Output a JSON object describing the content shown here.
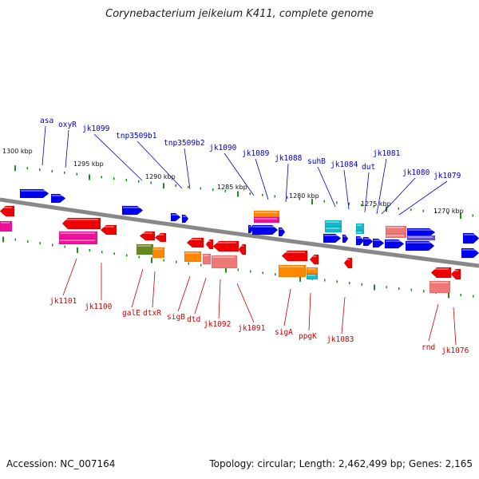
{
  "title": "Corynebacterium jeikeium K411, complete genome",
  "accession": "Accession: NC_007164",
  "summary": "Topology: circular; Length: 2,462,499 bp; Genes: 2,165",
  "scale_labels": [
    "1300 kbp",
    "1295 kbp",
    "1290 kbp",
    "1285 kbp",
    "1280 kbp",
    "1275 kbp",
    "1270 kbp"
  ],
  "top_labels": [
    "asa",
    "oxyR",
    "jk1099",
    "tnp3509b1",
    "tnp3509b2",
    "jk1090",
    "jk1089",
    "jk1088",
    "suhB",
    "jk1084",
    "dut",
    "jk1081",
    "jk1080",
    "jk1079"
  ],
  "bottom_labels": [
    "jk1101",
    "jk1100",
    "galE",
    "dtxR",
    "sigB",
    "dtd",
    "jk1092",
    "jk1091",
    "sigA",
    "ppgK",
    "jk1083",
    "rnd",
    "jk1076"
  ],
  "colors": {
    "forward_gene": "#0000ee",
    "reverse_gene": "#ee0000",
    "pink": "#ee1199",
    "orange": "#ff8800",
    "cyan": "#11bbcc",
    "salmon": "#ee7777",
    "olive": "#668822",
    "violet": "#6655cc",
    "backbone": "#888888",
    "ticks": "#228822",
    "label_top": "#0000cc",
    "label_bottom": "#cc0000"
  }
}
